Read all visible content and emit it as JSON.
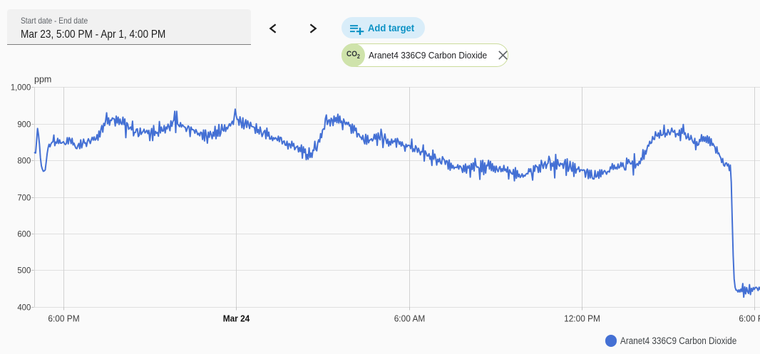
{
  "header": {
    "date_field": {
      "label": "Start date - End date",
      "value": "Mar 23, 5:00 PM - Apr 1, 4:00 PM"
    },
    "add_target": {
      "label": "Add target"
    },
    "sensor_chip": {
      "avatar_text": "CO",
      "avatar_sub": "2",
      "label": "Aranet4 336C9 Carbon Dioxide"
    }
  },
  "chart_data": {
    "type": "line",
    "title": "",
    "ylabel": "ppm",
    "y_axis": {
      "min": 400,
      "max": 1000,
      "tick_step": 100,
      "tick_labels": [
        "1,000",
        "900",
        "800",
        "700",
        "600",
        "500",
        "400"
      ]
    },
    "x_axis": {
      "start_label": "Mar 23, 5:00 PM",
      "ticks": [
        {
          "minute": 60,
          "label": "6:00 PM",
          "bold": false
        },
        {
          "minute": 420,
          "label": "Mar 24",
          "bold": true
        },
        {
          "minute": 780,
          "label": "6:00 AM",
          "bold": false
        },
        {
          "minute": 1140,
          "label": "12:00 PM",
          "bold": false
        },
        {
          "minute": 1500,
          "label": "6:00 PM",
          "bold": false
        }
      ]
    },
    "legend": {
      "position": "bottom-right",
      "entries": [
        {
          "label": "Aranet4 336C9 Carbon Dioxide",
          "color": "#4470D4",
          "marker": "circle"
        }
      ]
    },
    "grid": true,
    "series": [
      {
        "name": "Aranet4 336C9 Carbon Dioxide",
        "unit": "ppm",
        "color": "#4470D4",
        "start_minute": 0,
        "step_minutes": 2,
        "values": [
          822,
          821,
          854,
          888,
          871,
          845,
          808,
          786,
          777,
          771,
          772,
          775,
          796,
          819,
          835,
          845,
          838,
          846,
          850,
          852,
          870,
          841,
          851,
          848,
          861,
          847,
          857,
          848,
          848,
          850,
          852,
          847,
          844,
          847,
          863,
          846,
          863,
          858,
          847,
          861,
          843,
          848,
          840,
          834,
          833,
          841,
          847,
          833,
          857,
          835,
          846,
          859,
          848,
          849,
          839,
          853,
          860,
          854,
          847,
          857,
          864,
          856,
          865,
          856,
          859,
          871,
          856,
          881,
          865,
          885,
          896,
          878,
          902,
          896,
          910,
          931,
          901,
          917,
          897,
          911,
          910,
          917,
          915,
          914,
          895,
          922,
          903,
          919,
          899,
          914,
          902,
          899,
          919,
          899,
          914,
          863,
          904,
          900,
          886,
          889,
          892,
          884,
          908,
          868,
          877,
          877,
          886,
          887,
          866,
          870,
          889,
          872,
          877,
          880,
          886,
          876,
          879,
          883,
          874,
          883,
          855,
          877,
          888,
          855,
          896,
          869,
          880,
          875,
          877,
          867,
          907,
          876,
          892,
          881,
          881,
          896,
          876,
          892,
          887,
          900,
          893,
          882,
          909,
          894,
          907,
          911,
          935,
          877,
          935,
          900,
          897,
          893,
          904,
          892,
          898,
          895,
          892,
          891,
          880,
          888,
          895,
          892,
          866,
          892,
          885,
          885,
          883,
          875,
          885,
          879,
          871,
          875,
          868,
          878,
          877,
          858,
          884,
          854,
          884,
          868,
          848,
          878,
          864,
          880,
          871,
          860,
          878,
          867,
          894,
          860,
          884,
          867,
          899,
          867,
          875,
          899,
          884,
          881,
          898,
          880,
          891,
          887,
          895,
          901,
          895,
          902,
          908,
          899,
          920,
          941,
          924,
          913,
          913,
          897,
          920,
          905,
          890,
          917,
          887,
          900,
          912,
          891,
          909,
          900,
          888,
          905,
          894,
          893,
          892,
          891,
          875,
          901,
          877,
          885,
          873,
          892,
          879,
          866,
          873,
          880,
          883,
          860,
          889,
          867,
          878,
          859,
          859,
          867,
          855,
          863,
          859,
          863,
          860,
          855,
          867,
          852,
          864,
          863,
          846,
          852,
          854,
          843,
          842,
          853,
          832,
          847,
          845,
          835,
          853,
          840,
          847,
          830,
          835,
          838,
          840,
          824,
          836,
          825,
          843,
          807,
          838,
          822,
          832,
          803,
          817,
          804,
          835,
          809,
          821,
          809,
          829,
          828,
          853,
          831,
          827,
          848,
          857,
          851,
          874,
          863,
          884,
          887,
          886,
          915,
          925,
          899,
          909,
          912,
          895,
          916,
          912,
          896,
          922,
          907,
          918,
          904,
          927,
          903,
          922,
          904,
          908,
          885,
          914,
          906,
          899,
          905,
          899,
          905,
          895,
          898,
          875,
          900,
          876,
          896,
          882,
          889,
          865,
          874,
          873,
          865,
          864,
          858,
          869,
          854,
          846,
          872,
          845,
          869,
          849,
          856,
          857,
          860,
          854,
          859,
          872,
          859,
          873,
          842,
          876,
          862,
          857,
          886,
          870,
          836,
          860,
          873,
          858,
          847,
          859,
          840,
          853,
          843,
          859,
          848,
          854,
          852,
          860,
          837,
          861,
          854,
          845,
          852,
          840,
          851,
          841,
          841,
          826,
          845,
          838,
          842,
          842,
          841,
          833,
          859,
          825,
          832,
          825,
          841,
          835,
          823,
          834,
          826,
          816,
          825,
          824,
          843,
          799,
          827,
          821,
          813,
          813,
          819,
          804,
          812,
          787,
          829,
          804,
          818,
          807,
          788,
          804,
          797,
          806,
          794,
          791,
          811,
          805,
          802,
          790,
          800,
          799,
          777,
          802,
          774,
          793,
          780,
          787,
          778,
          782,
          782,
          781,
          789,
          777,
          786,
          784,
          778,
          768,
          787,
          770,
          791,
          766,
          785,
          780,
          787,
          755,
          792,
          776,
          794,
          772,
          806,
          787,
          782,
          783,
          780,
          749,
          800,
          770,
          801,
          762,
          794,
          766,
          788,
          786,
          801,
          777,
          798,
          773,
          792,
          771,
          785,
          768,
          785,
          775,
          770,
          780,
          784,
          770,
          778,
          771,
          787,
          773,
          777,
          769,
          783,
          750,
          775,
          769,
          765,
          763,
          776,
          745,
          781,
          752,
          773,
          756,
          763,
          754,
          758,
          764,
          755,
          760,
          758,
          763,
          765,
          764,
          778,
          770,
          778,
          764,
          747,
          786,
          771,
          788,
          784,
          783,
          768,
          789,
          769,
          801,
          790,
          779,
          792,
          797,
          779,
          790,
          793,
          812,
          803,
          774,
          793,
          785,
          797,
          753,
          817,
          777,
          803,
          790,
          785,
          793,
          790,
          792,
          779,
          795,
          803,
          760,
          805,
          771,
          779,
          798,
          778,
          771,
          795,
          757,
          792,
          766,
          777,
          777,
          783,
          770,
          775,
          775,
          773,
          775,
          774,
          755,
          771,
          777,
          751,
          774,
          753,
          774,
          754,
          750,
          750,
          773,
          755,
          757,
          770,
          752,
          775,
          756,
          775,
          763,
          770,
          773,
          769,
          763,
          770,
          771,
          769,
          783,
          778,
          792,
          776,
          788,
          778,
          782,
          777,
          791,
          780,
          783,
          795,
          784,
          794,
          783,
          775,
          775,
          807,
          792,
          803,
          796,
          791,
          792,
          799,
          761,
          819,
          780,
          789,
          792,
          787,
          798,
          792,
          807,
          802,
          830,
          804,
          828,
          818,
          830,
          842,
          840,
          853,
          847,
          849,
          866,
          859,
          858,
          879,
          869,
          867,
          876,
          862,
          883,
          869,
          870,
          872,
          897,
          865,
          875,
          870,
          885,
          878,
          871,
          879,
          889,
          879,
          878,
          883,
          865,
          873,
          874,
          869,
          884,
          855,
          888,
          875,
          899,
          872,
          876,
          860,
          863,
          874,
          857,
          858,
          869,
          858,
          851,
          847,
          861,
          830,
          852,
          842,
          844,
          858,
          853,
          871,
          853,
          866,
          853,
          865,
          850,
          868,
          848,
          865,
          841,
          860,
          842,
          847,
          841,
          837,
          821,
          838,
          819,
          821,
          813,
          808,
          795,
          806,
          788,
          785,
          793,
          794,
          786,
          791,
          773,
          788,
          741,
          637,
          541,
          477,
          454,
          446,
          446,
          441,
          447,
          441,
          449,
          442,
          464,
          427,
          455,
          436,
          453,
          442,
          437,
          461,
          434,
          451,
          443,
          453,
          448,
          453,
          454,
          451,
          445,
          454,
          448,
          458,
          458,
          451,
          459
        ]
      }
    ]
  }
}
